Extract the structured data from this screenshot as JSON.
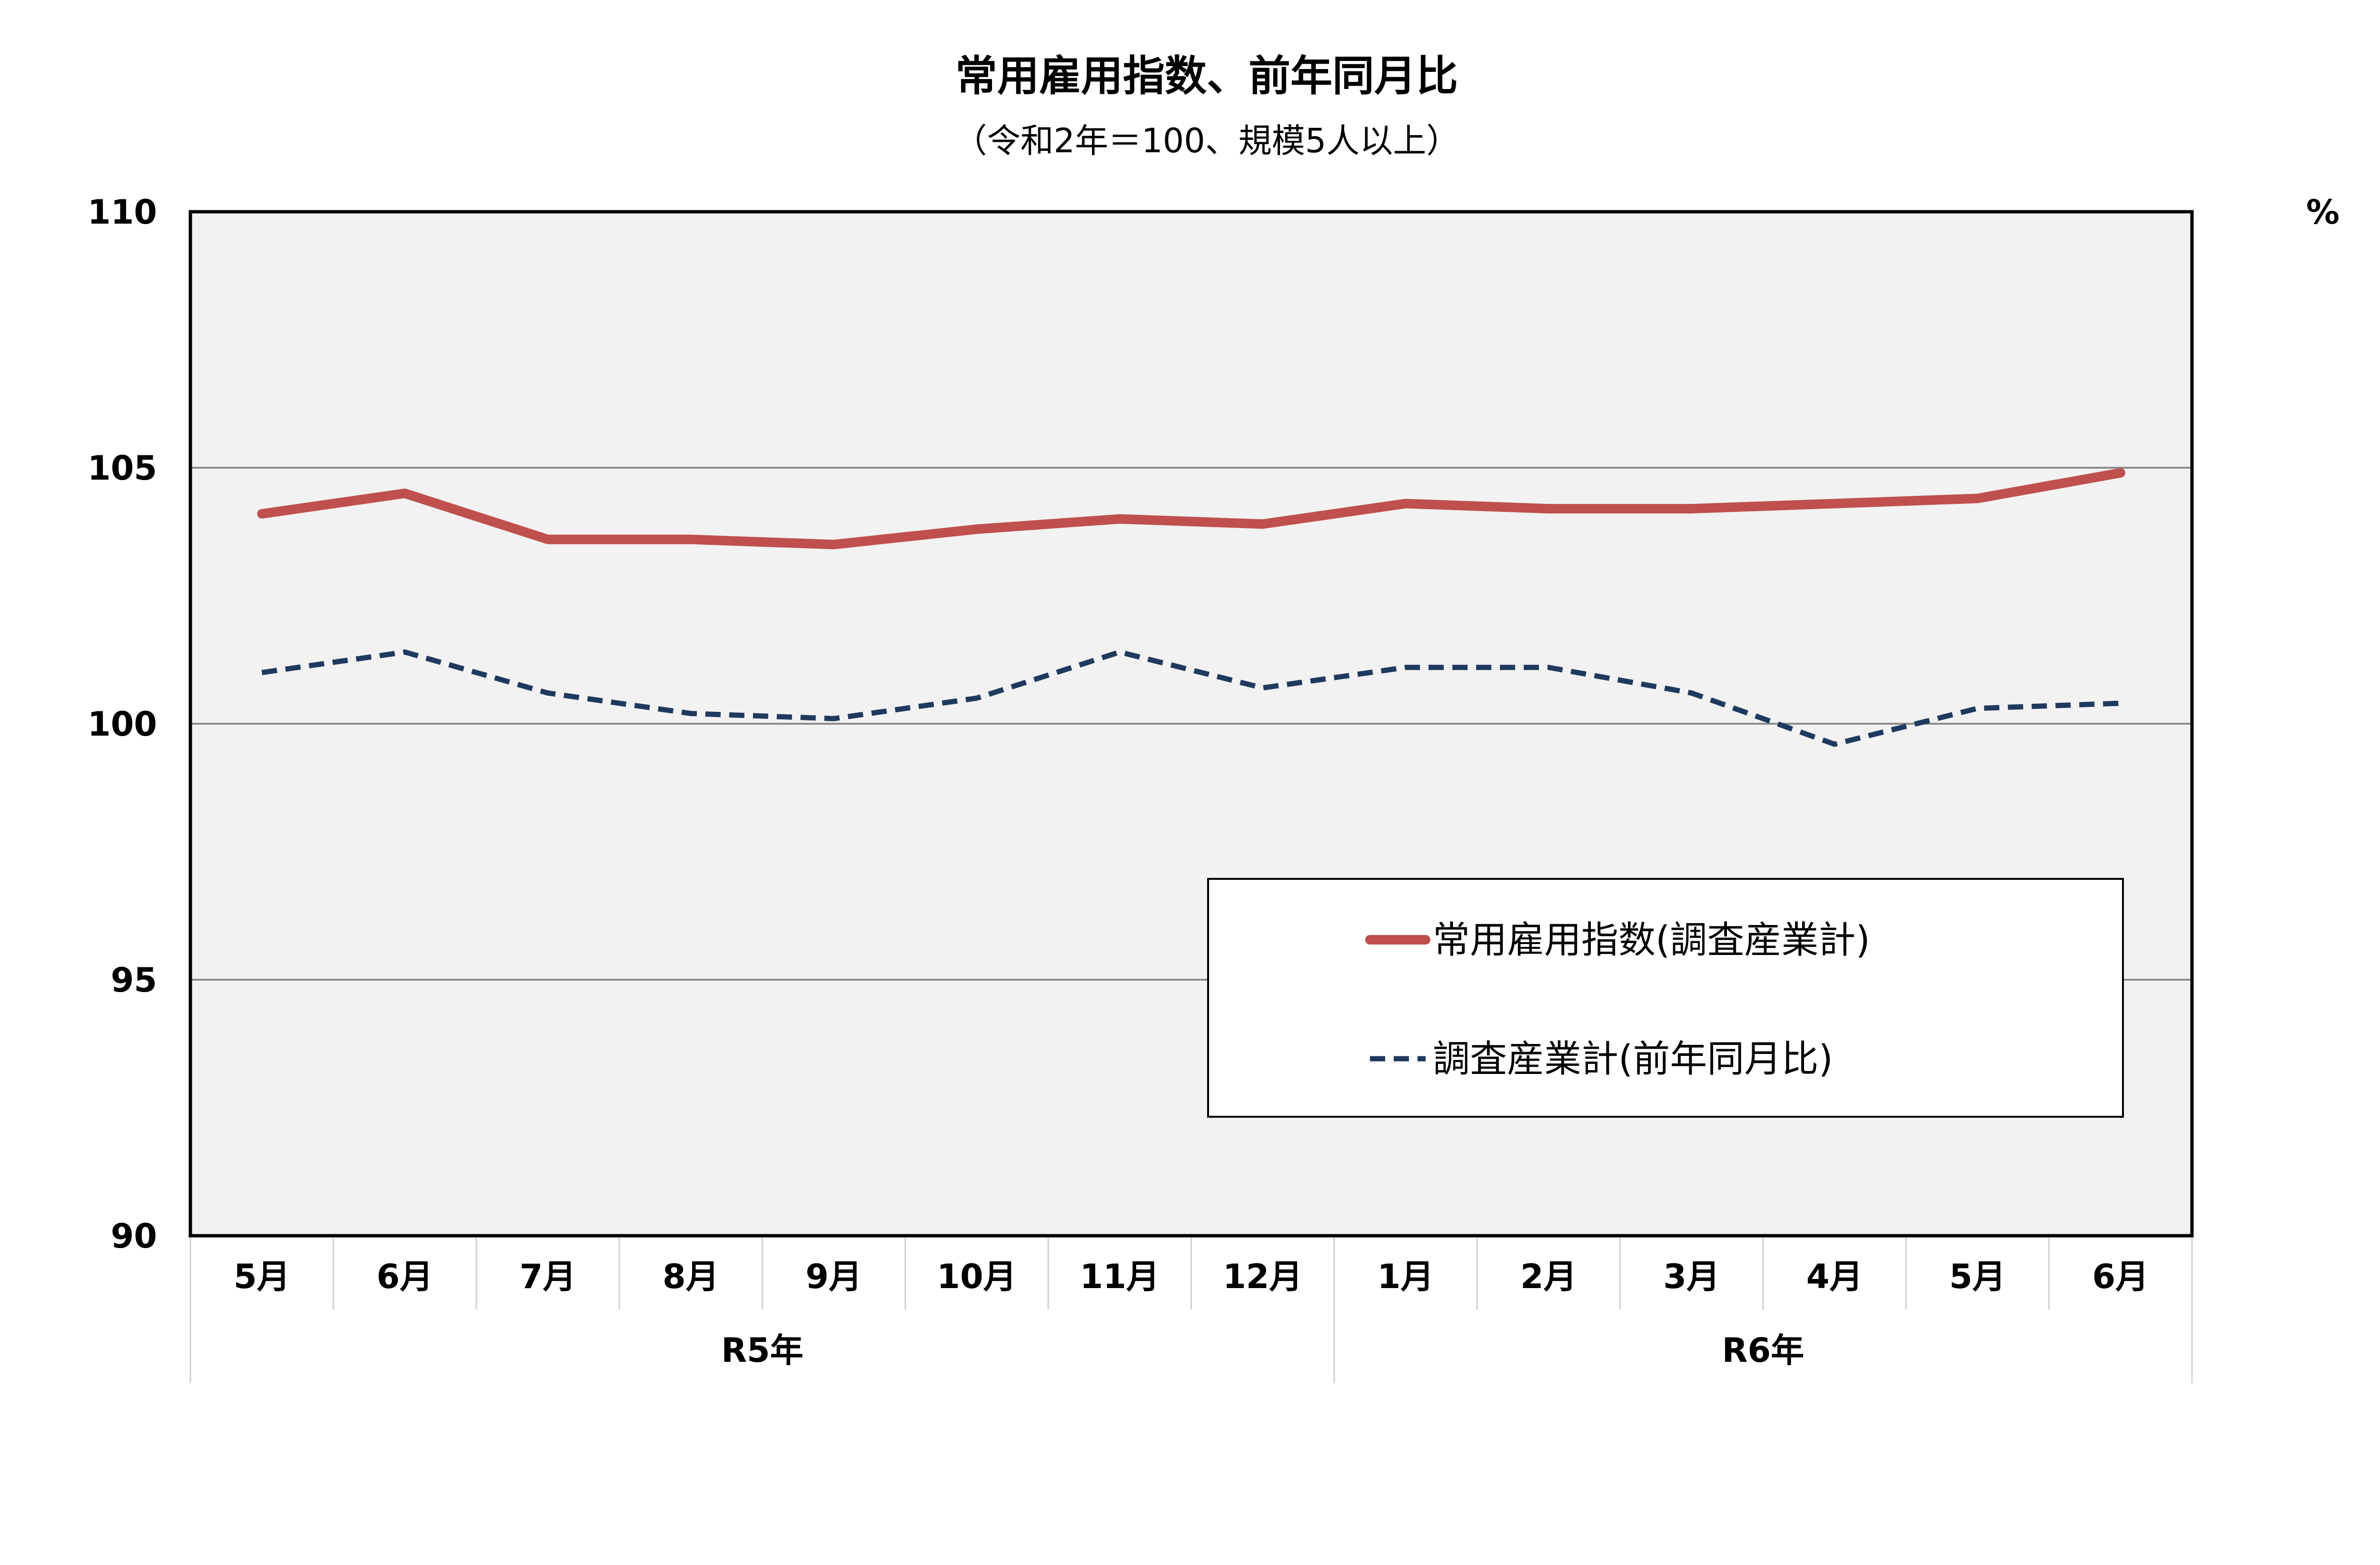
{
  "chart_data": {
    "type": "line",
    "title": "常用雇用指数、前年同月比",
    "subtitle": "（令和2年＝100、規模5人以上）",
    "unit": "%",
    "ylim": [
      90,
      110
    ],
    "yticks": [
      "110",
      "105",
      "100",
      "95",
      "90"
    ],
    "grid": true,
    "legend_position": "bottom-right",
    "categories": [
      "5月",
      "6月",
      "7月",
      "8月",
      "9月",
      "10月",
      "11月",
      "12月",
      "1月",
      "2月",
      "3月",
      "4月",
      "5月",
      "6月"
    ],
    "groups": [
      {
        "label": "R5年",
        "count": 8
      },
      {
        "label": "R6年",
        "count": 6
      }
    ],
    "series": [
      {
        "name": "常用雇用指数(調査産業計)",
        "color": "#c0504d",
        "style": "solid",
        "values": [
          104.1,
          104.5,
          103.6,
          103.6,
          103.5,
          103.8,
          104.0,
          103.9,
          104.3,
          104.2,
          104.2,
          104.3,
          104.4,
          104.9
        ]
      },
      {
        "name": "調査産業計(前年同月比)",
        "color": "#1f3a5f",
        "style": "dashed",
        "values": [
          101.0,
          101.4,
          100.6,
          100.2,
          100.1,
          100.5,
          101.4,
          100.7,
          101.1,
          101.1,
          100.6,
          99.6,
          100.3,
          100.4
        ]
      }
    ]
  }
}
